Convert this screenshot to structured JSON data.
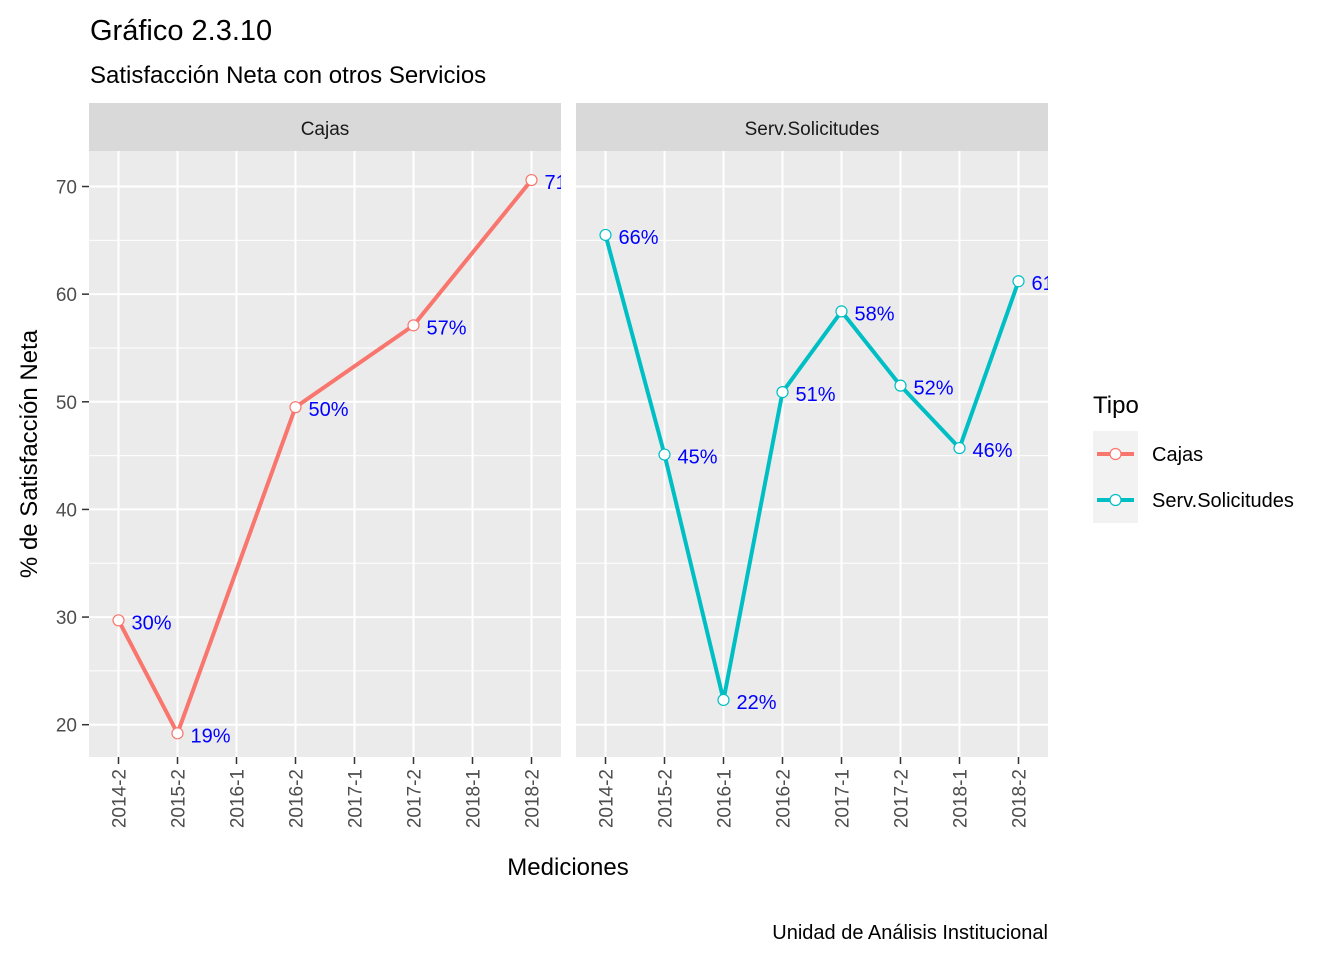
{
  "chart_data": {
    "type": "line",
    "title": "Gráfico 2.3.10",
    "subtitle": "Satisfacción Neta con otros Servicios",
    "xlabel": "Mediciones",
    "ylabel": "% de Satisfacción Neta",
    "caption": "Unidad de Análisis Institucional",
    "categories": [
      "2014-2",
      "2015-2",
      "2016-1",
      "2016-2",
      "2017-1",
      "2017-2",
      "2018-1",
      "2018-2"
    ],
    "ylim": [
      17,
      73.3
    ],
    "yticks": [
      20,
      30,
      40,
      50,
      60,
      70
    ],
    "yminor": [
      25,
      35,
      45,
      55,
      65
    ],
    "grid": true,
    "legend": {
      "title": "Tipo",
      "position": "right"
    },
    "panels": [
      {
        "strip": "Cajas",
        "series": [
          {
            "name": "Cajas",
            "color": "#F8766D",
            "points": [
              {
                "x": "2014-2",
                "y": 29.7,
                "label": "30%"
              },
              {
                "x": "2015-2",
                "y": 19.2,
                "label": "19%"
              },
              {
                "x": "2016-2",
                "y": 49.5,
                "label": "50%"
              },
              {
                "x": "2017-2",
                "y": 57.1,
                "label": "57%"
              },
              {
                "x": "2018-2",
                "y": 70.6,
                "label": "71"
              }
            ]
          }
        ]
      },
      {
        "strip": "Serv.Solicitudes",
        "series": [
          {
            "name": "Serv.Solicitudes",
            "color": "#00BFC4",
            "points": [
              {
                "x": "2014-2",
                "y": 65.5,
                "label": "66%"
              },
              {
                "x": "2015-2",
                "y": 45.1,
                "label": "45%"
              },
              {
                "x": "2016-1",
                "y": 22.3,
                "label": "22%"
              },
              {
                "x": "2016-2",
                "y": 50.9,
                "label": "51%"
              },
              {
                "x": "2017-1",
                "y": 58.4,
                "label": "58%"
              },
              {
                "x": "2017-2",
                "y": 51.5,
                "label": "52%"
              },
              {
                "x": "2018-1",
                "y": 45.7,
                "label": "46%"
              },
              {
                "x": "2018-2",
                "y": 61.2,
                "label": "61"
              }
            ]
          }
        ]
      }
    ]
  }
}
